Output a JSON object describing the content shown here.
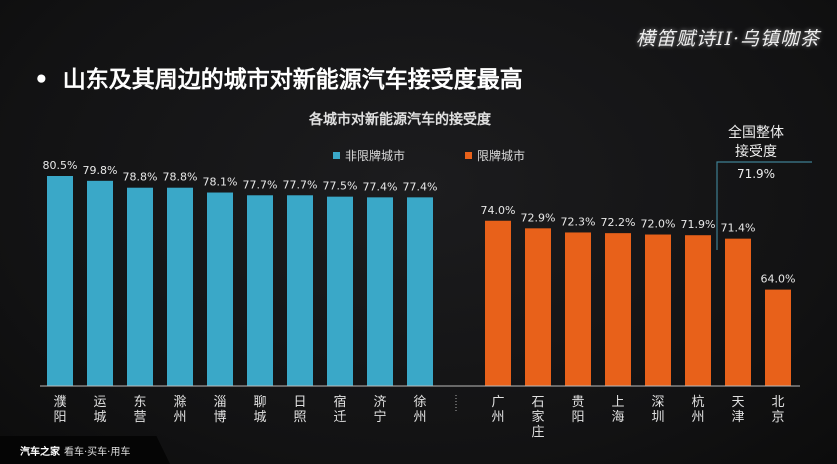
{
  "logo_text": "横笛赋诗II·乌镇咖茶",
  "heading": "山东及其周边的城市对新能源汽车接受度最高",
  "footer": {
    "brand": "汽车之家",
    "slogan": "看车·买车·用车"
  },
  "colors": {
    "non_restricted": "#3aa8c8",
    "restricted": "#e8611a",
    "annotation_line": "#3e7f92"
  },
  "chart_data": {
    "type": "bar",
    "title": "各城市对新能源汽车的接受度",
    "legend": [
      {
        "name": "非限牌城市",
        "color": "#3aa8c8"
      },
      {
        "name": "限牌城市",
        "color": "#e8611a"
      }
    ],
    "legend_placement": "top",
    "ylim": [
      50,
      85
    ],
    "grid": false,
    "series": [
      {
        "name": "非限牌城市",
        "categories": [
          "濮阳",
          "运城",
          "东营",
          "滁州",
          "淄博",
          "聊城",
          "日照",
          "宿迁",
          "济宁",
          "徐州"
        ],
        "values": [
          80.5,
          79.8,
          78.8,
          78.8,
          78.1,
          77.7,
          77.7,
          77.5,
          77.4,
          77.4
        ],
        "labels": [
          "80.5%",
          "79.8%",
          "78.8%",
          "78.8%",
          "78.1%",
          "77.7%",
          "77.7%",
          "77.5%",
          "77.4%",
          "77.4%"
        ]
      },
      {
        "name": "限牌城市",
        "categories": [
          "广州",
          "石家庄",
          "贵阳",
          "上海",
          "深圳",
          "杭州",
          "天津",
          "北京"
        ],
        "values": [
          74.0,
          72.9,
          72.3,
          72.2,
          72.0,
          71.9,
          71.4,
          64.0
        ],
        "labels": [
          "74.0%",
          "72.9%",
          "72.3%",
          "72.2%",
          "72.0%",
          "71.9%",
          "71.4%",
          "64.0%"
        ]
      }
    ],
    "annotation": {
      "line1": "全国整体",
      "line2": "接受度",
      "value_label": "71.9%",
      "value": 71.9
    }
  }
}
